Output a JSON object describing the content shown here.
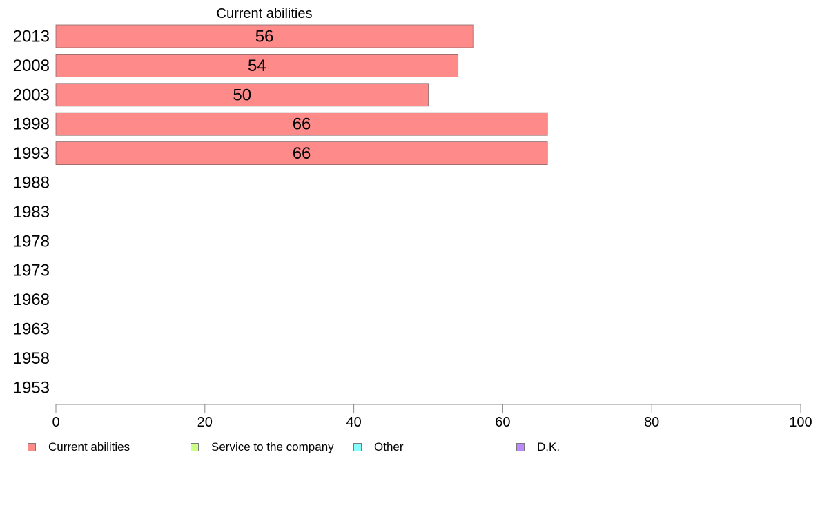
{
  "chart_data": {
    "type": "bar",
    "orientation": "horizontal",
    "title": "",
    "categories": [
      "2013",
      "2008",
      "2003",
      "1998",
      "1993",
      "1988",
      "1983",
      "1978",
      "1973",
      "1968",
      "1963",
      "1958",
      "1953"
    ],
    "series": [
      {
        "name": "Current abilities",
        "color": "#ff8a8a",
        "values": [
          56,
          54,
          50,
          66,
          66,
          null,
          null,
          null,
          null,
          null,
          null,
          null,
          null
        ],
        "labels": [
          "56",
          "54",
          "50",
          "66",
          "66"
        ]
      },
      {
        "name": "Service to the company",
        "color": "#ccff88",
        "values": [
          null,
          null,
          null,
          null,
          null,
          null,
          null,
          null,
          null,
          null,
          null,
          null,
          null
        ]
      },
      {
        "name": "Other",
        "color": "#88ffff",
        "values": [
          null,
          null,
          null,
          null,
          null,
          null,
          null,
          null,
          null,
          null,
          null,
          null,
          null
        ]
      },
      {
        "name": "D.K.",
        "color": "#bb88ff",
        "values": [
          null,
          null,
          null,
          null,
          null,
          null,
          null,
          null,
          null,
          null,
          null,
          null,
          null
        ]
      }
    ],
    "xlim": [
      0,
      100
    ],
    "xticks": [
      "0",
      "20",
      "40",
      "60",
      "80",
      "100"
    ],
    "grid": false,
    "legend": "bottom"
  }
}
